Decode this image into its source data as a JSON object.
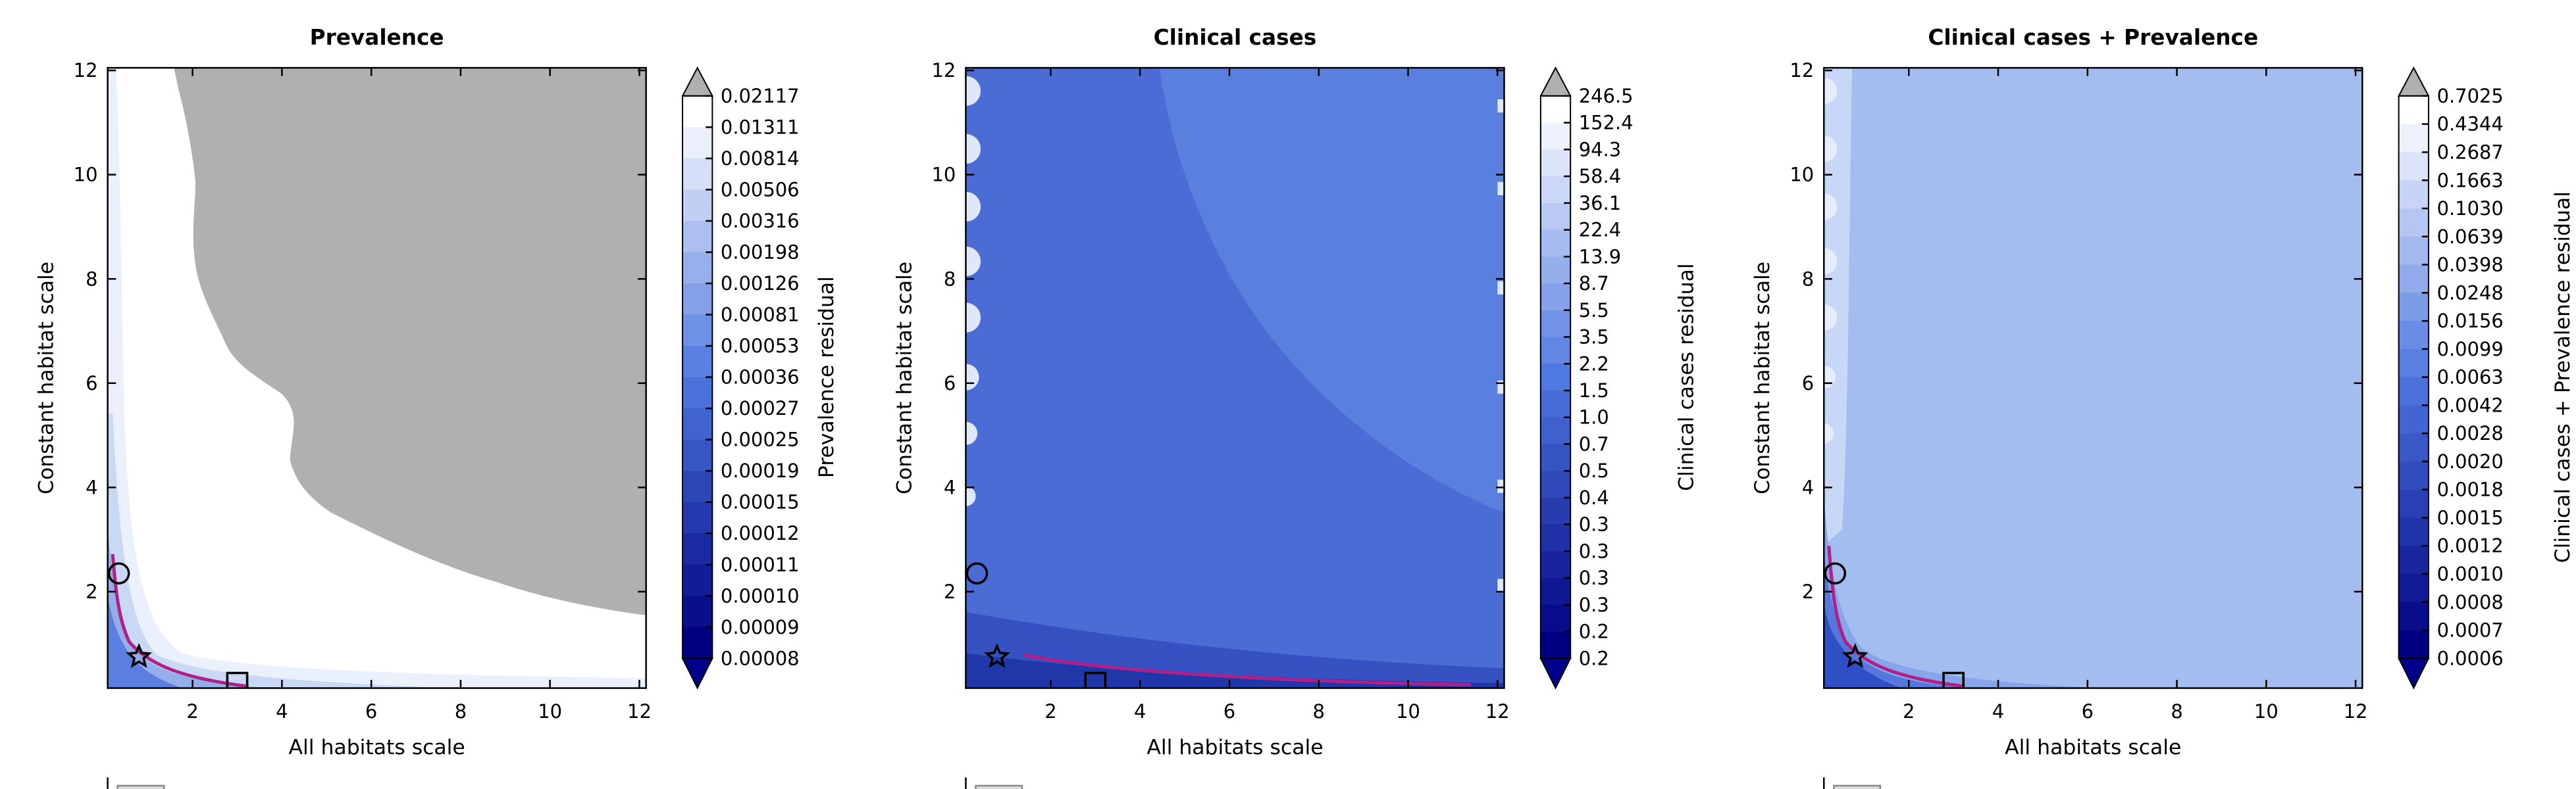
{
  "chart_data": [
    {
      "type": "contour",
      "title": "Prevalence",
      "xlabel": "All habitats scale",
      "ylabel": "Constant habitat scale",
      "xlim": [
        0.1,
        12.15
      ],
      "ylim": [
        0.15,
        12.05
      ],
      "xticks": [
        2,
        4,
        6,
        8,
        10,
        12
      ],
      "yticks": [
        2,
        4,
        6,
        8,
        10,
        12
      ],
      "colorbar": {
        "label": "Prevalence residual",
        "levels": [
          0.02117,
          0.01311,
          0.00814,
          0.00506,
          0.00316,
          0.00198,
          0.00126,
          0.00081,
          0.00053,
          0.00036,
          0.00027,
          0.00025,
          0.00019,
          0.00015,
          0.00012,
          0.00011,
          {
            "value": 0.0001,
            "label": "0.00010"
          },
          9e-05,
          8e-05
        ],
        "colors": [
          "#ffffff",
          "#4f78e0",
          "#000080"
        ],
        "over_color": "#b0b0b0",
        "under_color": "#00008b"
      },
      "markers": [
        {
          "x": 0.35,
          "y": 2.35,
          "shape": "circle"
        },
        {
          "x": 0.8,
          "y": 0.75,
          "shape": "star"
        },
        {
          "x": 3.0,
          "y": 0.25,
          "shape": "square"
        }
      ]
    },
    {
      "type": "contour",
      "title": "Clinical cases",
      "xlabel": "All habitats scale",
      "ylabel": "Constant habitat scale",
      "xlim": [
        0.1,
        12.15
      ],
      "ylim": [
        0.15,
        12.05
      ],
      "xticks": [
        2,
        4,
        6,
        8,
        10,
        12
      ],
      "yticks": [
        2,
        4,
        6,
        8,
        10,
        12
      ],
      "colorbar": {
        "label": "Clinical cases residual",
        "levels": [
          246.5,
          152.4,
          94.3,
          58.4,
          36.1,
          22.4,
          13.9,
          8.7,
          5.5,
          3.5,
          2.2,
          1.5,
          {
            "value": 1,
            "label": "1.0"
          },
          0.7,
          0.5,
          0.4,
          0.3,
          0.3,
          0.3,
          0.3,
          0.2,
          0.2
        ],
        "colors": [
          "#ffffff",
          "#4f78e0",
          "#000080"
        ],
        "over_color": "#b0b0b0",
        "under_color": "#00008b"
      },
      "markers": [
        {
          "x": 0.35,
          "y": 2.35,
          "shape": "circle"
        },
        {
          "x": 0.8,
          "y": 0.75,
          "shape": "star"
        },
        {
          "x": 3.0,
          "y": 0.25,
          "shape": "square"
        }
      ]
    },
    {
      "type": "contour",
      "title": "Clinical cases + Prevalence",
      "xlabel": "All habitats scale",
      "ylabel": "Constant habitat scale",
      "xlim": [
        0.1,
        12.15
      ],
      "ylim": [
        0.15,
        12.05
      ],
      "xticks": [
        2,
        4,
        6,
        8,
        10,
        12
      ],
      "yticks": [
        2,
        4,
        6,
        8,
        10,
        12
      ],
      "colorbar": {
        "label": "Clinical cases + Prevalence residual",
        "levels": [
          0.7025,
          0.4344,
          0.2687,
          0.1663,
          {
            "value": 0.103,
            "label": "0.1030"
          },
          0.0639,
          0.0398,
          0.0248,
          0.0156,
          0.0099,
          0.0063,
          0.0042,
          0.0028,
          {
            "value": 0.002,
            "label": "0.0020"
          },
          0.0018,
          0.0015,
          0.0012,
          {
            "value": 0.001,
            "label": "0.0010"
          },
          0.0008,
          0.0007,
          0.0006
        ],
        "colors": [
          "#ffffff",
          "#4f78e0",
          "#000080"
        ],
        "over_color": "#b0b0b0",
        "under_color": "#00008b"
      },
      "markers": [
        {
          "x": 0.35,
          "y": 2.35,
          "shape": "circle"
        },
        {
          "x": 0.8,
          "y": 0.75,
          "shape": "star"
        },
        {
          "x": 3.0,
          "y": 0.25,
          "shape": "square"
        }
      ]
    }
  ]
}
